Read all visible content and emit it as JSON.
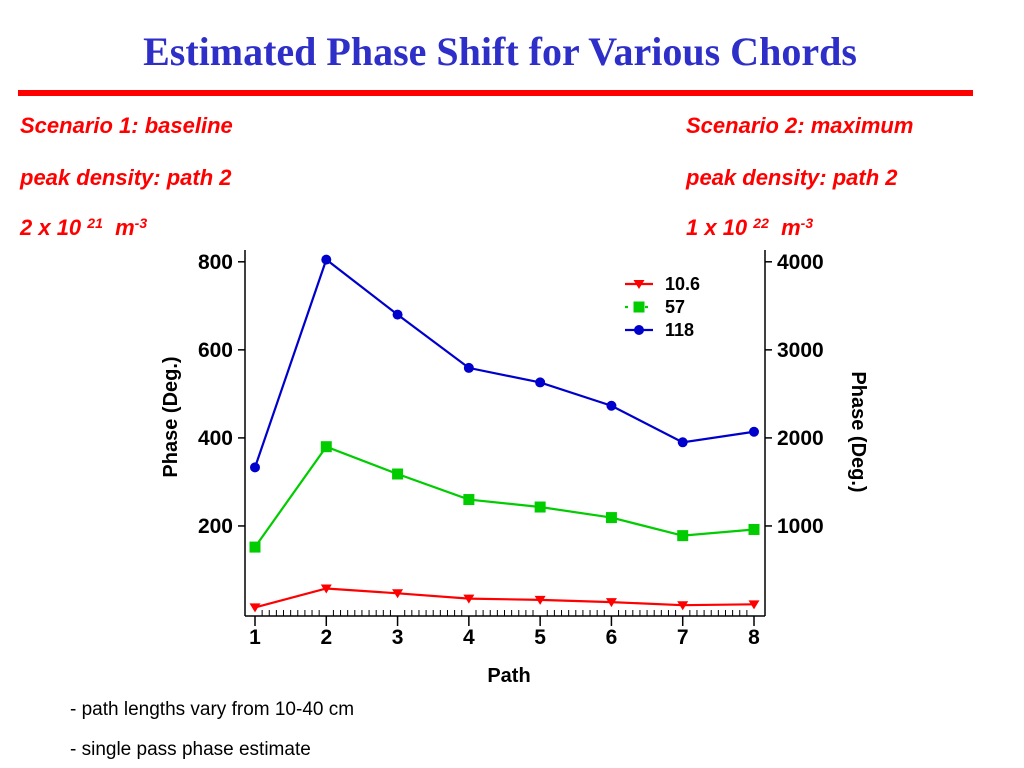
{
  "slide": {
    "title": "Estimated Phase Shift for Various Chords",
    "scenario1": {
      "line1": "Scenario 1: baseline",
      "line2": "peak density: path 2",
      "line3_base": "2 x 10",
      "line3_exp": "21",
      "line3_unit": "m",
      "line3_unit_exp": "-3"
    },
    "scenario2": {
      "line1": "Scenario 2: maximum",
      "line2": "peak density:  path 2",
      "line3_base": "1 x 10",
      "line3_exp": "22",
      "line3_unit": "m",
      "line3_unit_exp": "-3"
    },
    "notes": [
      "- path lengths vary from 10-40 cm",
      "- single pass phase estimate"
    ]
  },
  "colors": {
    "title": "#2e2ec8",
    "rule": "#ff0000",
    "scenario": "#ff0000"
  },
  "chart_data": {
    "type": "line",
    "xlabel": "Path",
    "ylabel": "Phase (Deg.)",
    "y2label": "Phase (Deg.)",
    "x": [
      1,
      2,
      3,
      4,
      5,
      6,
      7,
      8
    ],
    "xlim": [
      1,
      8
    ],
    "ylim": [
      0,
      820
    ],
    "y2lim": [
      0,
      4100
    ],
    "yticks": [
      200,
      400,
      600,
      800
    ],
    "y2ticks": [
      1000,
      2000,
      3000,
      4000
    ],
    "xticks": [
      1,
      2,
      3,
      4,
      5,
      6,
      7,
      8
    ],
    "grid": false,
    "legend": "top-right",
    "series": [
      {
        "name": "10.6",
        "axis": "left",
        "color": "#ff0000",
        "marker": "triangle-down",
        "values": [
          15,
          58,
          47,
          35,
          32,
          27,
          20,
          22
        ]
      },
      {
        "name": "57",
        "axis": "left",
        "color": "#00cc00",
        "marker": "square",
        "values": [
          152,
          380,
          318,
          260,
          243,
          219,
          178,
          192
        ]
      },
      {
        "name": "118",
        "axis": "left",
        "color": "#0000cc",
        "marker": "circle",
        "values": [
          333,
          805,
          680,
          559,
          526,
          473,
          390,
          414
        ]
      }
    ]
  }
}
